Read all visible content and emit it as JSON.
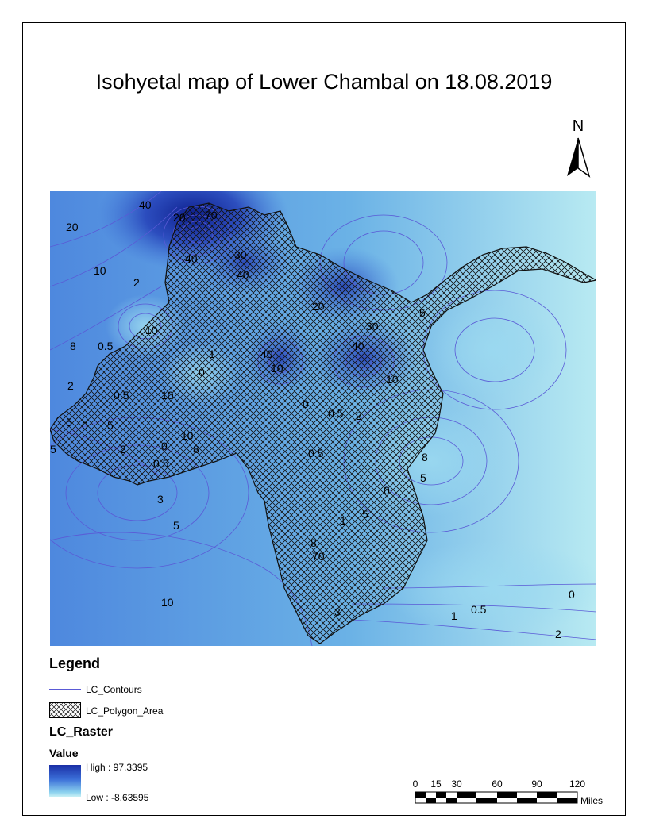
{
  "title": "Isohyetal map of Lower Chambal on 18.08.2019",
  "north_arrow": {
    "letter": "N"
  },
  "map": {
    "contour_labels": [
      "40",
      "20",
      "10",
      "2",
      "8",
      "0.5",
      "2",
      "0",
      "5",
      "5",
      "10",
      "20",
      "40",
      "70",
      "40",
      "30",
      "40",
      "1",
      "0",
      "10",
      "0.5",
      "10",
      "8",
      "0",
      "5",
      "2",
      "3",
      "5",
      "10",
      "0.5",
      "10",
      "40",
      "30",
      "20",
      "10",
      "0",
      "0.5",
      "0.5",
      "2",
      "8",
      "5",
      "0",
      "5",
      "1",
      "8",
      "70",
      "3",
      "5",
      "0",
      "1",
      "0.5",
      "2"
    ]
  },
  "legend": {
    "title": "Legend",
    "contours_label": "LC_Contours",
    "polygon_label": "LC_Polygon_Area",
    "raster_title": "LC_Raster",
    "value_title": "Value",
    "high_label": "High : 97.3395",
    "low_label": "Low : -8.63595"
  },
  "scale_bar": {
    "ticks": [
      "0",
      "15",
      "30",
      "60",
      "90",
      "120"
    ],
    "unit": "Miles"
  },
  "colors": {
    "high": "#1a2fa6",
    "mid": "#3b6fd8",
    "low": "#c7f0f5",
    "contour": "#5a5ad6"
  }
}
